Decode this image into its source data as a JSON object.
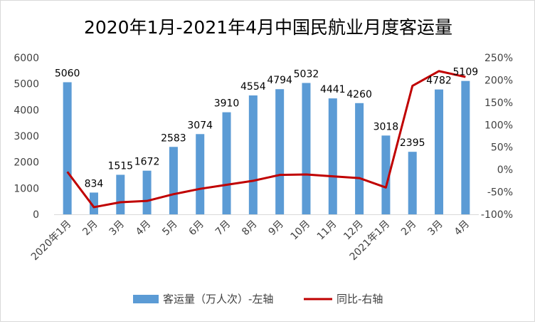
{
  "chart_data": {
    "type": "bar",
    "title": "2020年1月-2021年4月中国民航业月度客运量",
    "categories": [
      "2020年1月",
      "2月",
      "3月",
      "4月",
      "5月",
      "6月",
      "7月",
      "8月",
      "9月",
      "10月",
      "11月",
      "12月",
      "2021年1月",
      "2月",
      "3月",
      "4月"
    ],
    "series": [
      {
        "name": "客运量（万人次）-左轴",
        "type": "bar",
        "axis": "left",
        "color": "#5b9bd5",
        "values": [
          5060,
          834,
          1515,
          1672,
          2583,
          3074,
          3910,
          4554,
          4794,
          5032,
          4441,
          4260,
          3018,
          2395,
          4782,
          5109
        ]
      },
      {
        "name": "同比-右轴",
        "type": "line",
        "axis": "right",
        "color": "#c00000",
        "values": [
          -5,
          -84,
          -73,
          -70,
          -55,
          -43,
          -34,
          -25,
          -12,
          -11,
          -15,
          -19,
          -40,
          187,
          220,
          207
        ]
      }
    ],
    "y_left": {
      "min": 0,
      "max": 6000,
      "ticks": [
        "0",
        "1000",
        "2000",
        "3000",
        "4000",
        "5000",
        "6000"
      ]
    },
    "y_right": {
      "min": -100,
      "max": 250,
      "ticks": [
        "-100%",
        "-50%",
        "0%",
        "50%",
        "100%",
        "150%",
        "200%",
        "250%"
      ]
    },
    "legend_position": "bottom",
    "grid": false
  }
}
